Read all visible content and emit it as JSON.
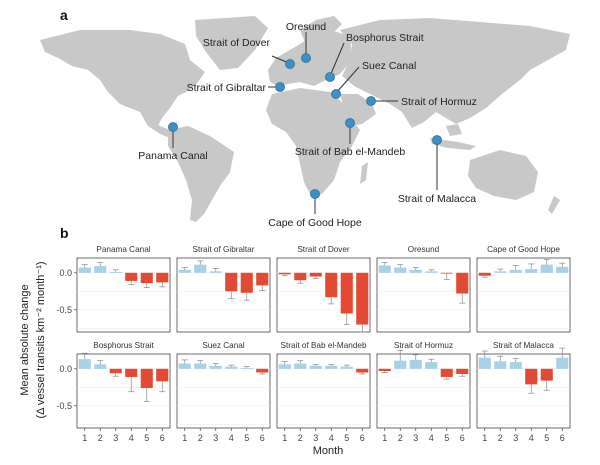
{
  "panel_labels": {
    "a": "a",
    "b": "b"
  },
  "map": {
    "land_color": "#c8c8c8",
    "marker_color": "#3f8ec6",
    "locations": [
      {
        "id": "panama",
        "name": "Panama Canal"
      },
      {
        "id": "gibraltar",
        "name": "Strait of Gibraltar"
      },
      {
        "id": "dover",
        "name": "Strait of Dover"
      },
      {
        "id": "oresund",
        "name": "Oresund"
      },
      {
        "id": "bosphorus",
        "name": "Bosphorus Strait"
      },
      {
        "id": "suez",
        "name": "Suez Canal"
      },
      {
        "id": "hormuz",
        "name": "Strait of Hormuz"
      },
      {
        "id": "babelmandeb",
        "name": "Strait of Bab el-Mandeb"
      },
      {
        "id": "malacca",
        "name": "Strait of Malacca"
      },
      {
        "id": "goodhope",
        "name": "Cape of Good Hope"
      }
    ]
  },
  "chart_data": {
    "type": "bar",
    "ylabel_line1": "Mean absolute change",
    "ylabel_line2": "(Δ vessel transits km⁻² month⁻¹)",
    "xlabel": "Month",
    "x_ticks": [
      "1",
      "2",
      "3",
      "4",
      "5",
      "6"
    ],
    "y_ticks": [
      {
        "v": 0,
        "label": "0.0"
      },
      {
        "v": -0.5,
        "label": "-0.5"
      }
    ],
    "ylim": [
      -0.8,
      0.2
    ],
    "positive_color": "#a8d0e6",
    "negative_color": "#e34a33",
    "panels": [
      {
        "name": "Panama Canal",
        "values": [
          0.07,
          0.09,
          0.01,
          -0.11,
          -0.14,
          -0.13
        ],
        "errors": [
          0.04,
          0.05,
          0.03,
          0.05,
          0.06,
          0.06
        ]
      },
      {
        "name": "Strait of Gibraltar",
        "values": [
          0.04,
          0.11,
          0.02,
          -0.25,
          -0.27,
          -0.17
        ],
        "errors": [
          0.03,
          0.05,
          0.04,
          0.1,
          0.1,
          0.07
        ]
      },
      {
        "name": "Strait of Dover",
        "values": [
          -0.02,
          -0.1,
          -0.05,
          -0.33,
          -0.55,
          -0.7
        ],
        "errors": [
          0.02,
          0.04,
          0.03,
          0.09,
          0.15,
          0.1
        ]
      },
      {
        "name": "Oresund",
        "values": [
          0.1,
          0.07,
          0.04,
          0.02,
          -0.01,
          -0.28
        ],
        "errors": [
          0.04,
          0.04,
          0.03,
          0.02,
          0.08,
          0.13
        ]
      },
      {
        "name": "Cape of Good Hope",
        "values": [
          -0.04,
          0.02,
          0.04,
          0.05,
          0.11,
          0.08
        ],
        "errors": [
          0.02,
          0.03,
          0.06,
          0.07,
          0.07,
          0.05
        ]
      },
      {
        "name": "Bosphorus Strait",
        "values": [
          0.13,
          0.06,
          -0.06,
          -0.11,
          -0.26,
          -0.17
        ],
        "errors": [
          0.08,
          0.05,
          0.04,
          0.2,
          0.18,
          0.14
        ]
      },
      {
        "name": "Suez Canal",
        "values": [
          0.07,
          0.07,
          0.04,
          0.03,
          0.01,
          -0.05
        ],
        "errors": [
          0.05,
          0.04,
          0.03,
          0.02,
          0.02,
          0.02
        ]
      },
      {
        "name": "Strait of Bab el-Mandeb",
        "values": [
          0.06,
          0.07,
          0.04,
          0.04,
          0.03,
          -0.05
        ],
        "errors": [
          0.04,
          0.04,
          0.02,
          0.02,
          0.02,
          0.02
        ]
      },
      {
        "name": "Strait of Hormuz",
        "values": [
          -0.03,
          0.11,
          0.12,
          0.09,
          -0.11,
          -0.07
        ],
        "errors": [
          0.02,
          0.14,
          0.07,
          0.04,
          0.03,
          0.03
        ]
      },
      {
        "name": "Strait of Malacca",
        "values": [
          0.15,
          0.1,
          0.09,
          -0.21,
          -0.16,
          0.15
        ],
        "errors": [
          0.09,
          0.07,
          0.05,
          0.12,
          0.13,
          0.13
        ]
      }
    ]
  }
}
